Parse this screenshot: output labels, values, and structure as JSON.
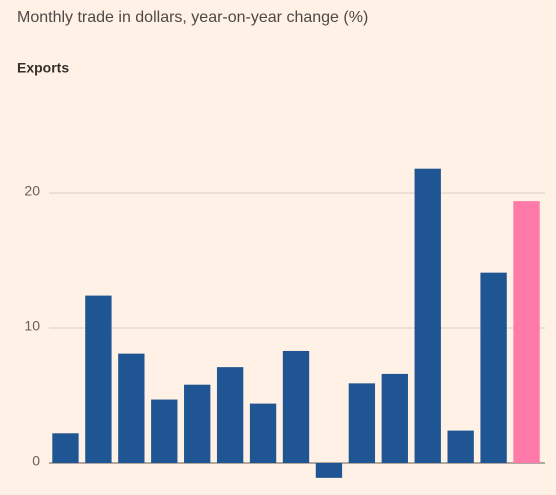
{
  "chart_data": {
    "type": "bar",
    "title": "Monthly trade in dollars, year-on-year change (%)",
    "subtitle": "Exports",
    "categories": [
      null,
      null,
      null,
      null,
      null,
      null,
      null,
      null,
      null,
      null,
      null,
      null,
      null,
      null,
      null
    ],
    "values": [
      2.2,
      12.4,
      8.1,
      4.7,
      5.8,
      7.1,
      4.4,
      8.3,
      -1.1,
      5.9,
      6.6,
      21.8,
      2.4,
      14.1,
      19.4
    ],
    "colors": [
      "#1f5592",
      "#1f5592",
      "#1f5592",
      "#1f5592",
      "#1f5592",
      "#1f5592",
      "#1f5592",
      "#1f5592",
      "#1f5592",
      "#1f5592",
      "#1f5592",
      "#1f5592",
      "#1f5592",
      "#1f5592",
      "#ff7aa8"
    ],
    "ylim": [
      -2,
      24
    ],
    "yticks": [
      0,
      10,
      20
    ],
    "grid": true
  }
}
